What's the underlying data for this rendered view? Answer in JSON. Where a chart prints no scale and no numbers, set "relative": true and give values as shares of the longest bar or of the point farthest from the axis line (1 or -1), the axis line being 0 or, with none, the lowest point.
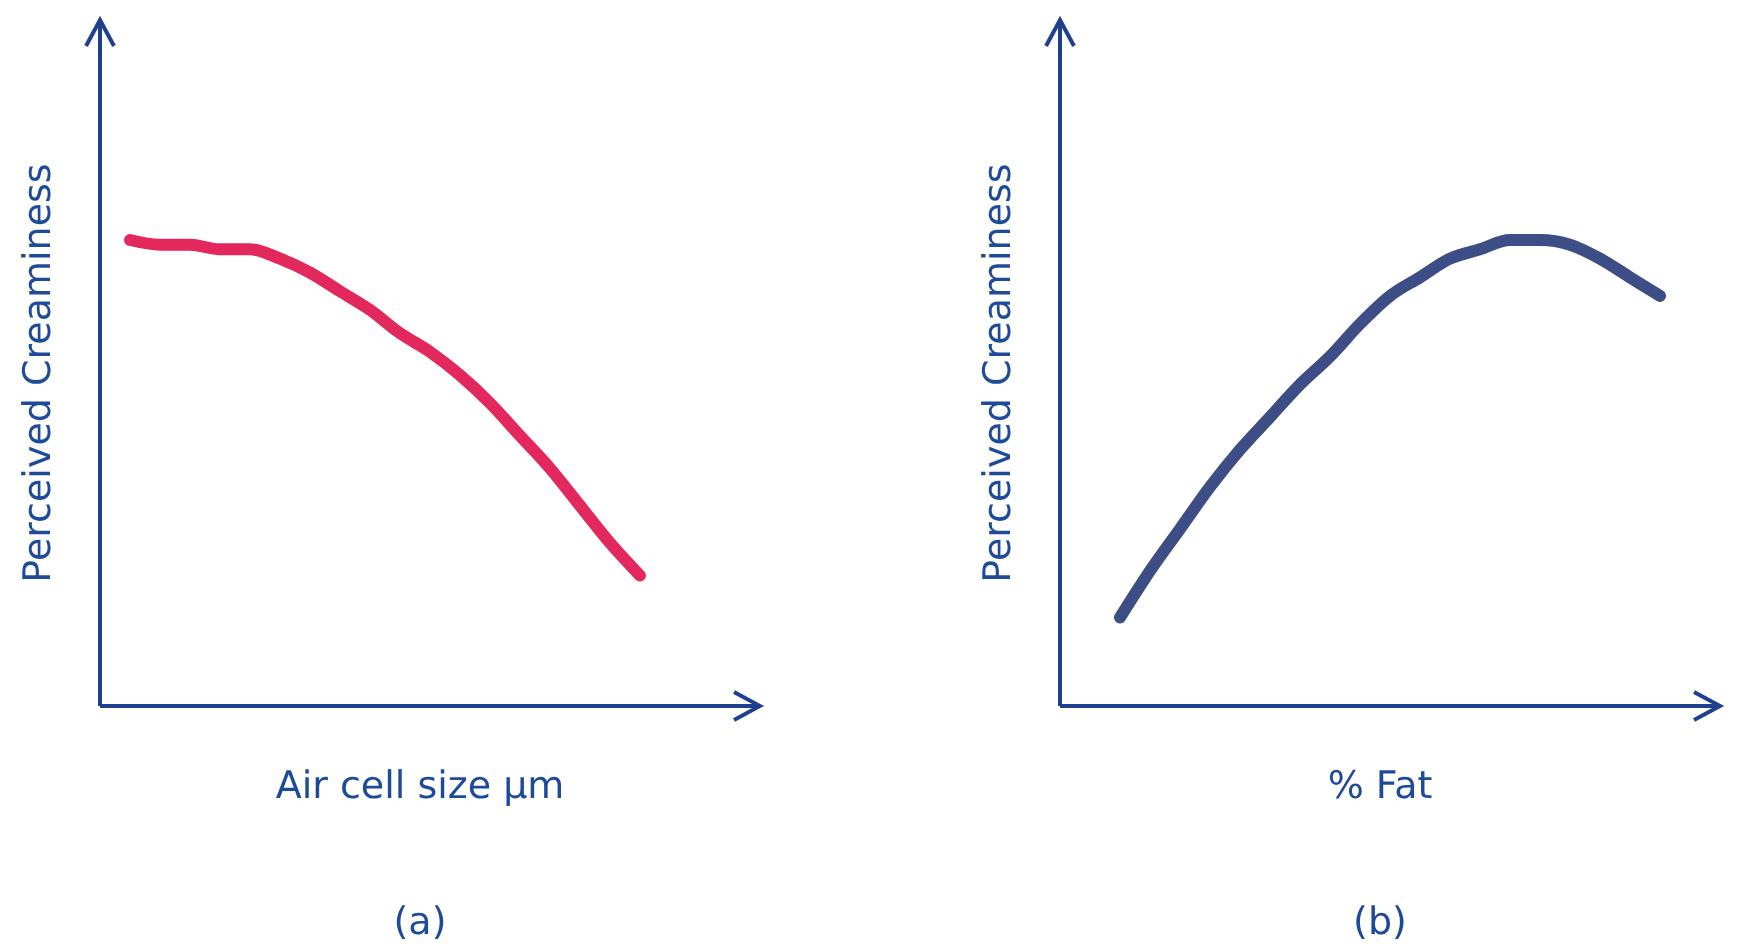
{
  "chart_data": [
    {
      "type": "line",
      "relative": true,
      "ylabel": "Perceived Creaminess",
      "xlabel": "Air cell size µm",
      "annotations": [
        "(a)"
      ],
      "line_style": "solid",
      "categories": [
        null,
        null,
        null,
        null,
        null,
        null,
        null,
        null,
        null,
        null,
        null,
        null,
        null,
        null,
        null,
        null,
        null,
        null,
        null,
        null,
        null,
        null,
        null
      ],
      "series": [
        {
          "color": "#e2285c",
          "values": [
            null,
            1,
            0.99,
            0.99,
            0.98,
            0.98,
            0.96,
            0.93,
            0.89,
            0.85,
            0.8,
            0.76,
            0.71,
            0.65,
            0.58,
            0.51,
            0.43,
            0.35,
            0.28,
            null,
            null,
            null,
            null
          ]
        }
      ]
    },
    {
      "type": "line",
      "relative": true,
      "ylabel": "Perceived Creaminess",
      "xlabel": "% Fat",
      "annotations": [
        "(b)"
      ],
      "line_style": "solid",
      "categories": [
        null,
        null,
        null,
        null,
        null,
        null,
        null,
        null,
        null,
        null,
        null,
        null,
        null,
        null,
        null,
        null,
        null,
        null,
        null,
        null,
        null,
        null,
        null
      ],
      "series": [
        {
          "color": "#3d4e86",
          "values": [
            null,
            null,
            0.19,
            0.29,
            0.38,
            0.47,
            0.55,
            0.62,
            0.69,
            0.75,
            0.82,
            0.88,
            0.92,
            0.96,
            0.98,
            1,
            1,
            0.99,
            0.96,
            0.92,
            0.88,
            null,
            null
          ]
        }
      ]
    }
  ]
}
